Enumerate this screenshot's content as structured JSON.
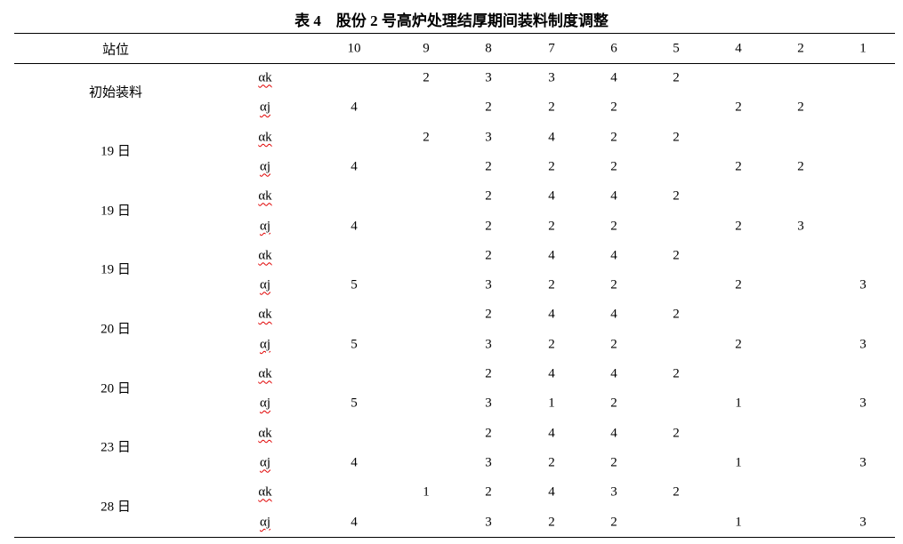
{
  "title": "表 4　股份 2 号高炉处理结厚期间装料制度调整",
  "header": {
    "station_label": "站位",
    "columns": [
      "10",
      "9",
      "8",
      "7",
      "6",
      "5",
      "4",
      "2",
      "1"
    ]
  },
  "groups": [
    {
      "label": "初始装料",
      "rows": [
        {
          "type": "αk",
          "values": [
            null,
            "2",
            "3",
            "3",
            "4",
            "2",
            null,
            null,
            null
          ]
        },
        {
          "type": "αj",
          "values": [
            "4",
            null,
            "2",
            "2",
            "2",
            null,
            "2",
            "2",
            null
          ]
        }
      ]
    },
    {
      "label": "19 日",
      "rows": [
        {
          "type": "αk",
          "values": [
            null,
            "2",
            "3",
            "4",
            "2",
            "2",
            null,
            null,
            null
          ]
        },
        {
          "type": "αj",
          "values": [
            "4",
            null,
            "2",
            "2",
            "2",
            null,
            "2",
            "2",
            null
          ]
        }
      ]
    },
    {
      "label": "19 日",
      "rows": [
        {
          "type": "αk",
          "values": [
            null,
            null,
            "2",
            "4",
            "4",
            "2",
            null,
            null,
            null
          ]
        },
        {
          "type": "αj",
          "values": [
            "4",
            null,
            "2",
            "2",
            "2",
            null,
            "2",
            "3",
            null
          ]
        }
      ]
    },
    {
      "label": "19 日",
      "rows": [
        {
          "type": "αk",
          "values": [
            null,
            null,
            "2",
            "4",
            "4",
            "2",
            null,
            null,
            null
          ]
        },
        {
          "type": "αj",
          "values": [
            "5",
            null,
            "3",
            "2",
            "2",
            null,
            "2",
            null,
            "3"
          ]
        }
      ]
    },
    {
      "label": "20 日",
      "rows": [
        {
          "type": "αk",
          "values": [
            null,
            null,
            "2",
            "4",
            "4",
            "2",
            null,
            null,
            null
          ]
        },
        {
          "type": "αj",
          "values": [
            "5",
            null,
            "3",
            "2",
            "2",
            null,
            "2",
            null,
            "3"
          ]
        }
      ]
    },
    {
      "label": "20 日",
      "rows": [
        {
          "type": "αk",
          "values": [
            null,
            null,
            "2",
            "4",
            "4",
            "2",
            null,
            null,
            null
          ]
        },
        {
          "type": "αj",
          "values": [
            "5",
            null,
            "3",
            "1",
            "2",
            null,
            "1",
            null,
            "3"
          ]
        }
      ]
    },
    {
      "label": "23 日",
      "rows": [
        {
          "type": "αk",
          "values": [
            null,
            null,
            "2",
            "4",
            "4",
            "2",
            null,
            null,
            null
          ]
        },
        {
          "type": "αj",
          "values": [
            "4",
            null,
            "3",
            "2",
            "2",
            null,
            "1",
            null,
            "3"
          ]
        }
      ]
    },
    {
      "label": "28 日",
      "rows": [
        {
          "type": "αk",
          "values": [
            null,
            "1",
            "2",
            "4",
            "3",
            "2",
            null,
            null,
            null
          ]
        },
        {
          "type": "αj",
          "values": [
            "4",
            null,
            "3",
            "2",
            "2",
            null,
            "1",
            null,
            "3"
          ]
        }
      ]
    }
  ]
}
